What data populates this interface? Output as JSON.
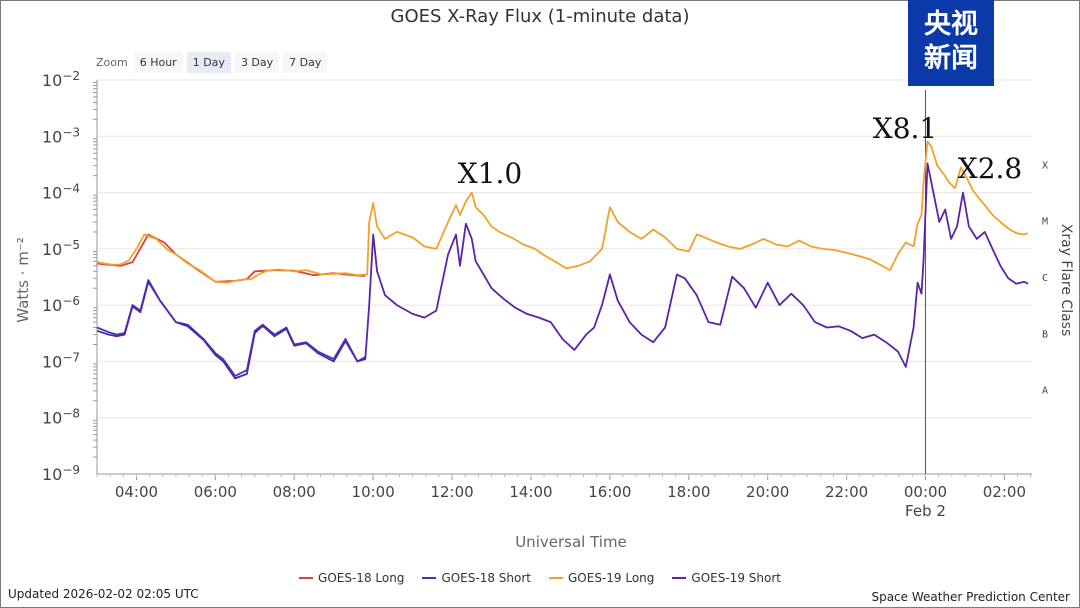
{
  "chart_data": {
    "type": "line",
    "title": "GOES X-Ray Flux (1-minute data)",
    "xlabel": "Universal Time",
    "ylabel": "Watts · m⁻²",
    "y2label": "Xray Flare Class",
    "yscale": "log",
    "ylim": [
      1e-09,
      0.01
    ],
    "xlim": [
      3.0,
      26.7
    ],
    "x_unit": "hours UTC (24 = 00:00 Feb 2)",
    "y_ticks": [
      {
        "base": "10",
        "exp": "−2"
      },
      {
        "base": "10",
        "exp": "−3"
      },
      {
        "base": "10",
        "exp": "−4"
      },
      {
        "base": "10",
        "exp": "−5"
      },
      {
        "base": "10",
        "exp": "−6"
      },
      {
        "base": "10",
        "exp": "−7"
      },
      {
        "base": "10",
        "exp": "−8"
      },
      {
        "base": "10",
        "exp": "−9"
      }
    ],
    "x_ticks": [
      {
        "x": 4,
        "label": "04:00"
      },
      {
        "x": 6,
        "label": "06:00"
      },
      {
        "x": 8,
        "label": "08:00"
      },
      {
        "x": 10,
        "label": "10:00"
      },
      {
        "x": 12,
        "label": "12:00"
      },
      {
        "x": 14,
        "label": "14:00"
      },
      {
        "x": 16,
        "label": "16:00"
      },
      {
        "x": 18,
        "label": "18:00"
      },
      {
        "x": 20,
        "label": "20:00"
      },
      {
        "x": 22,
        "label": "22:00"
      },
      {
        "x": 24,
        "label": "00:00"
      },
      {
        "x": 26,
        "label": "02:00"
      }
    ],
    "date_label": "Feb 2",
    "flare_classes": [
      {
        "label": "X",
        "level": 0.0001
      },
      {
        "label": "M",
        "level": 1e-05
      },
      {
        "label": "C",
        "level": 1e-06
      },
      {
        "label": "B",
        "level": 1e-07
      },
      {
        "label": "A",
        "level": 1e-08
      }
    ],
    "annotations": [
      {
        "text": "X1.0",
        "x": 12.5,
        "y": 0.0001
      },
      {
        "text": "X8.1",
        "x": 23.9,
        "y": 0.00081
      },
      {
        "text": "X2.8",
        "x": 25.9,
        "y": 0.00028
      }
    ],
    "series": [
      {
        "name": "GOES-18 Long",
        "color": "#e0403a",
        "x": [
          3.0,
          3.3,
          3.6,
          3.9,
          4.3,
          4.7,
          5.0,
          5.5,
          6.0,
          6.5,
          6.8,
          7.0,
          7.5,
          8.0,
          8.5,
          9.0,
          9.5,
          9.8
        ],
        "y": [
          5.5e-06,
          5.2e-06,
          5e-06,
          5.8e-06,
          1.8e-05,
          1.3e-05,
          8e-06,
          4.5e-06,
          2.6e-06,
          2.7e-06,
          2.9e-06,
          4e-06,
          4.2e-06,
          4.1e-06,
          3.4e-06,
          3.7e-06,
          3.4e-06,
          3.3e-06
        ]
      },
      {
        "name": "GOES-18 Short",
        "color": "#2f3fb0",
        "x": [
          3.0,
          3.3,
          3.5,
          3.7,
          3.9,
          4.1,
          4.3,
          4.6,
          5.0,
          5.3,
          5.7,
          6.0,
          6.2,
          6.5,
          6.8,
          7.0,
          7.2,
          7.5,
          7.8,
          8.0,
          8.3,
          8.6,
          9.0,
          9.3,
          9.6,
          9.8
        ],
        "y": [
          4e-07,
          3.3e-07,
          3e-07,
          3.2e-07,
          1e-06,
          8e-07,
          2.8e-06,
          1.2e-06,
          5e-07,
          4.5e-07,
          2.5e-07,
          1.4e-07,
          1.1e-07,
          5.5e-08,
          7e-08,
          3.5e-07,
          4.5e-07,
          3e-07,
          4e-07,
          2e-07,
          2.2e-07,
          1.5e-07,
          1.1e-07,
          2.5e-07,
          1e-07,
          1.2e-07
        ]
      },
      {
        "name": "GOES-19 Long",
        "color": "#f0a22a",
        "x": [
          3.0,
          3.2,
          3.4,
          3.6,
          3.8,
          4.0,
          4.2,
          4.5,
          4.8,
          5.0,
          5.3,
          5.6,
          6.0,
          6.3,
          6.6,
          6.9,
          7.1,
          7.3,
          7.6,
          8.0,
          8.3,
          8.7,
          9.0,
          9.3,
          9.6,
          9.85,
          9.9,
          10.0,
          10.1,
          10.3,
          10.6,
          11.0,
          11.3,
          11.6,
          11.9,
          12.1,
          12.2,
          12.35,
          12.5,
          12.6,
          12.8,
          13.0,
          13.2,
          13.5,
          13.8,
          14.1,
          14.3,
          14.6,
          14.9,
          15.2,
          15.5,
          15.8,
          16.0,
          16.2,
          16.5,
          16.8,
          17.1,
          17.4,
          17.7,
          18.0,
          18.2,
          18.4,
          18.7,
          19.0,
          19.3,
          19.6,
          19.9,
          20.2,
          20.5,
          20.8,
          21.1,
          21.4,
          21.7,
          22.0,
          22.3,
          22.6,
          22.9,
          23.1,
          23.3,
          23.5,
          23.7,
          23.8,
          23.9,
          23.95,
          24.05,
          24.15,
          24.3,
          24.45,
          24.6,
          24.75,
          24.9,
          25.05,
          25.2,
          25.35,
          25.5,
          25.7,
          25.9,
          26.1,
          26.3,
          26.5,
          26.6
        ],
        "y": [
          5.8e-06,
          5.5e-06,
          5.2e-06,
          5.3e-06,
          6.2e-06,
          1e-05,
          1.8e-05,
          1.5e-05,
          9.5e-06,
          8e-06,
          5.5e-06,
          4.2e-06,
          2.6e-06,
          2.5e-06,
          2.8e-06,
          2.9e-06,
          3.5e-06,
          4.1e-06,
          4.3e-06,
          4e-06,
          4.2e-06,
          3.5e-06,
          3.6e-06,
          3.7e-06,
          3.4e-06,
          3.5e-06,
          3e-05,
          6.5e-05,
          2.5e-05,
          1.5e-05,
          2e-05,
          1.6e-05,
          1.1e-05,
          1e-05,
          3e-05,
          6e-05,
          4e-05,
          7e-05,
          0.0001,
          5.5e-05,
          4e-05,
          2.5e-05,
          2e-05,
          1.6e-05,
          1.2e-05,
          1e-05,
          8e-06,
          6e-06,
          4.5e-06,
          5e-06,
          6e-06,
          1e-05,
          5.5e-05,
          3e-05,
          2e-05,
          1.5e-05,
          2.2e-05,
          1.6e-05,
          1e-05,
          9e-06,
          1.8e-05,
          1.6e-05,
          1.3e-05,
          1.1e-05,
          1e-05,
          1.2e-05,
          1.5e-05,
          1.2e-05,
          1.1e-05,
          1.4e-05,
          1.1e-05,
          1e-05,
          9.5e-06,
          8.5e-06,
          7.5e-06,
          6.5e-06,
          5e-06,
          4.2e-06,
          8e-06,
          1.3e-05,
          1.1e-05,
          2.8e-05,
          4e-05,
          0.00015,
          0.00081,
          0.00065,
          0.0003,
          0.00022,
          0.00015,
          0.00012,
          0.00028,
          0.00018,
          0.00011,
          8e-05,
          6e-05,
          4e-05,
          3e-05,
          2.3e-05,
          1.9e-05,
          1.8e-05,
          1.9e-05
        ]
      },
      {
        "name": "GOES-19 Short",
        "color": "#5a23a8",
        "x": [
          3.0,
          3.3,
          3.5,
          3.7,
          3.9,
          4.1,
          4.3,
          4.6,
          5.0,
          5.3,
          5.7,
          6.0,
          6.2,
          6.5,
          6.8,
          7.0,
          7.2,
          7.5,
          7.8,
          8.0,
          8.3,
          8.6,
          9.0,
          9.3,
          9.6,
          9.8,
          9.9,
          10.0,
          10.1,
          10.3,
          10.6,
          11.0,
          11.3,
          11.6,
          11.9,
          12.1,
          12.2,
          12.35,
          12.5,
          12.6,
          12.8,
          13.0,
          13.3,
          13.6,
          13.9,
          14.2,
          14.5,
          14.8,
          15.1,
          15.4,
          15.6,
          15.8,
          16.0,
          16.2,
          16.5,
          16.8,
          17.1,
          17.4,
          17.7,
          17.9,
          18.2,
          18.5,
          18.8,
          19.1,
          19.4,
          19.7,
          20.0,
          20.3,
          20.6,
          20.9,
          21.2,
          21.5,
          21.8,
          22.1,
          22.4,
          22.7,
          23.0,
          23.3,
          23.5,
          23.7,
          23.8,
          23.9,
          23.95,
          24.05,
          24.2,
          24.35,
          24.5,
          24.65,
          24.8,
          24.95,
          25.1,
          25.3,
          25.5,
          25.7,
          25.9,
          26.1,
          26.3,
          26.5,
          26.6
        ],
        "y": [
          3.5e-07,
          3e-07,
          2.8e-07,
          3e-07,
          9.5e-07,
          7.5e-07,
          2.6e-06,
          1.2e-06,
          5e-07,
          4.2e-07,
          2.4e-07,
          1.3e-07,
          1e-07,
          5e-08,
          6e-08,
          3.2e-07,
          4.3e-07,
          2.8e-07,
          3.8e-07,
          1.9e-07,
          2.1e-07,
          1.4e-07,
          1e-07,
          2.3e-07,
          1e-07,
          1.1e-07,
          1e-06,
          1.8e-05,
          4e-06,
          1.5e-06,
          1e-06,
          7e-07,
          6e-07,
          8e-07,
          8e-06,
          1.8e-05,
          5e-06,
          2.8e-05,
          1.5e-05,
          6e-06,
          3.5e-06,
          2e-06,
          1.3e-06,
          9e-07,
          7e-07,
          6e-07,
          5e-07,
          2.5e-07,
          1.6e-07,
          3e-07,
          4e-07,
          1e-06,
          3.5e-06,
          1.2e-06,
          5e-07,
          3e-07,
          2.2e-07,
          4e-07,
          3.5e-06,
          3e-06,
          1.5e-06,
          5e-07,
          4.5e-07,
          3.2e-06,
          2e-06,
          9e-07,
          2.5e-06,
          1e-06,
          1.6e-06,
          1e-06,
          5e-07,
          4e-07,
          4.2e-07,
          3.5e-07,
          2.6e-07,
          3e-07,
          2.2e-07,
          1.5e-07,
          8e-08,
          4e-07,
          2.5e-06,
          1.6e-06,
          6e-06,
          0.00033,
          0.0001,
          3e-05,
          5e-05,
          1.5e-05,
          2.5e-05,
          0.0001,
          2.5e-05,
          1.5e-05,
          2e-05,
          1e-05,
          5e-06,
          3e-06,
          2.4e-06,
          2.6e-06,
          2.4e-06
        ]
      }
    ]
  },
  "header": {
    "logo_line1": "央视",
    "logo_line2a": "新",
    "logo_line2b": "闻"
  },
  "zoom": {
    "label": "Zoom",
    "buttons": [
      "6 Hour",
      "1 Day",
      "3 Day",
      "7 Day"
    ],
    "active": "1 Day"
  },
  "footer": {
    "updated": "Updated 2026-02-02 02:05 UTC",
    "credit": "Space Weather Prediction Center"
  }
}
